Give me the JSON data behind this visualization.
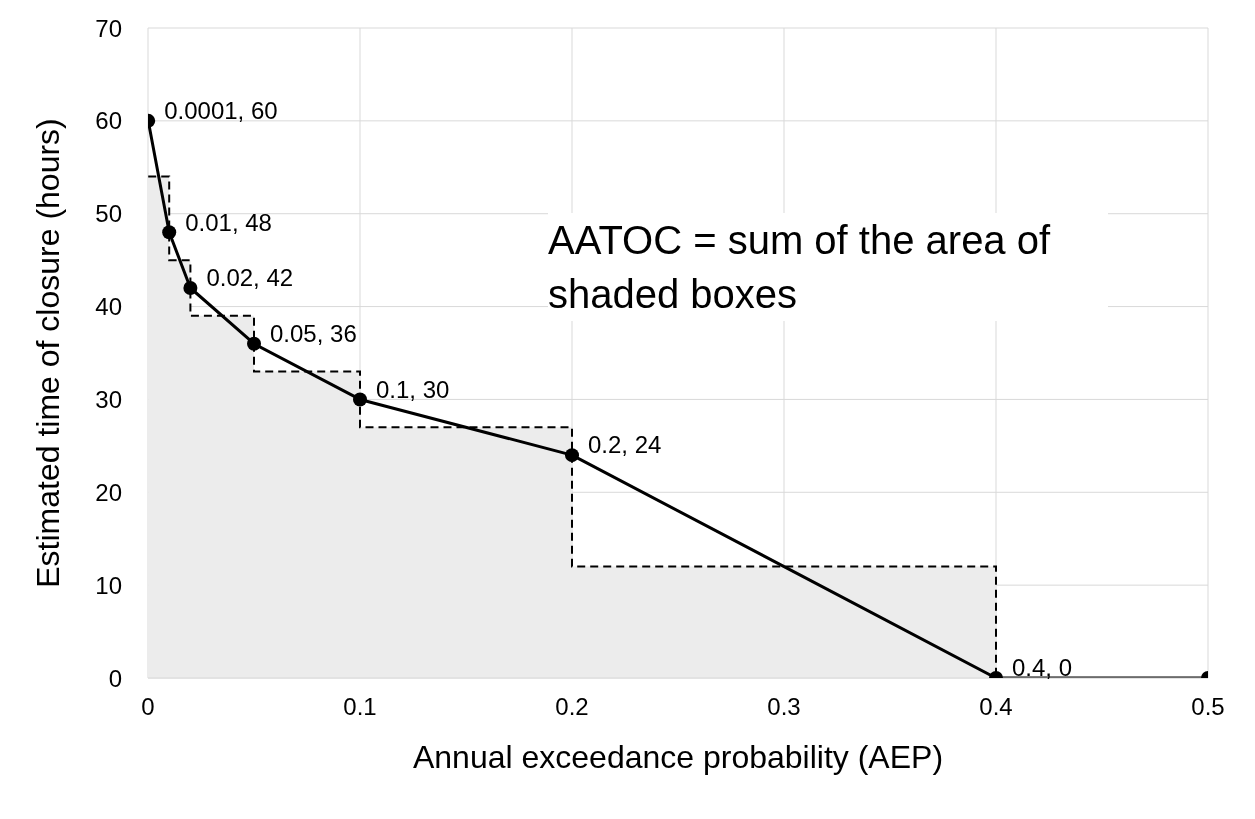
{
  "chart_data": {
    "type": "line",
    "xlabel": "Annual exceedance probability (AEP)",
    "ylabel": "Estimated time of closure (hours)",
    "xlim": [
      0,
      0.5
    ],
    "xticks": [
      0,
      0.1,
      0.2,
      0.3,
      0.4,
      0.5
    ],
    "ylim": [
      0,
      70
    ],
    "yticks": [
      0,
      10,
      20,
      30,
      40,
      50,
      60,
      70
    ],
    "grid": true,
    "legend": false,
    "annotations": [
      "AATOC = sum of the area of shaded boxes"
    ],
    "series": [
      {
        "type": "area",
        "color": "#ececec",
        "line_style": "dashed",
        "marker": "none",
        "x": [
          0.0001,
          0.01,
          0.02,
          0.05,
          0.1,
          0.2,
          0.4
        ],
        "values": [
          54,
          45,
          39,
          33,
          27,
          12,
          0
        ]
      },
      {
        "color": "#000000",
        "line_style": "solid",
        "marker": "circle",
        "x": [
          0.0001,
          0.01,
          0.02,
          0.05,
          0.1,
          0.2,
          0.4,
          0.5
        ],
        "values": [
          60,
          48,
          42,
          36,
          30,
          24,
          0,
          0
        ],
        "value_labels": [
          "0.0001, 60",
          "0.01, 48",
          "0.02, 42",
          "0.05, 36",
          "0.1, 30",
          "0.2, 24",
          "0.4, 0",
          null
        ]
      }
    ]
  }
}
